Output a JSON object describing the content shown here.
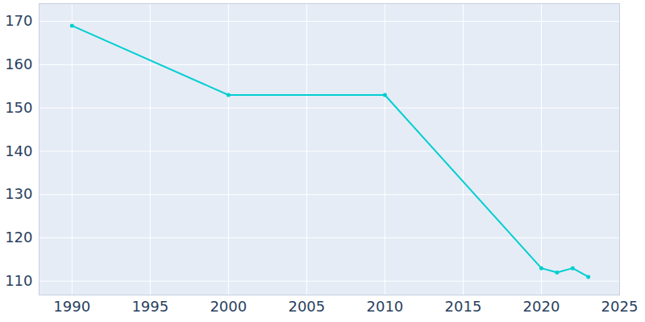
{
  "chart_data": {
    "type": "line",
    "x": [
      1990,
      2000,
      2010,
      2020,
      2021,
      2022,
      2023
    ],
    "values": [
      169,
      153,
      153,
      113,
      112,
      113,
      111
    ],
    "color": "#00ced1",
    "marker": "circle",
    "xlim": [
      1987.9,
      2025
    ],
    "xticks": [
      1990,
      1995,
      2000,
      2005,
      2010,
      2015,
      2020,
      2025
    ],
    "ylim": [
      106.8,
      174.1
    ],
    "yticks": [
      110,
      120,
      130,
      140,
      150,
      160,
      170
    ],
    "grid": true
  }
}
